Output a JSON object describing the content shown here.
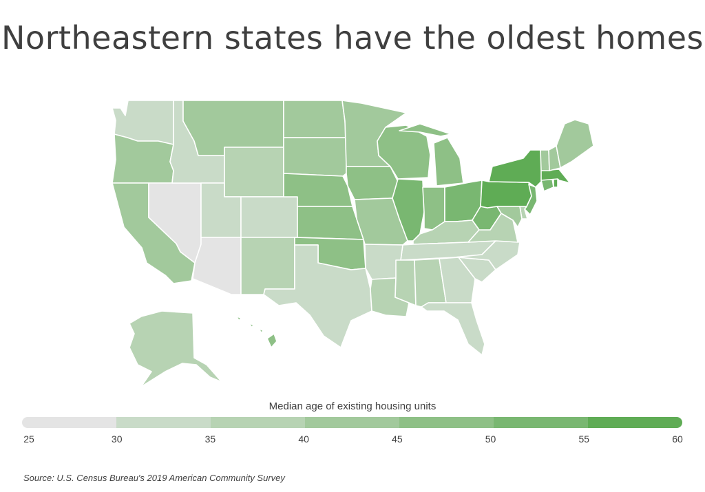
{
  "title": "Northeastern states have the oldest homes",
  "legend": {
    "title": "Median age of existing housing units",
    "ticks": [
      "25",
      "30",
      "35",
      "40",
      "45",
      "50",
      "55",
      "60"
    ],
    "bins": [
      {
        "range": [
          25,
          30
        ],
        "color": "#e4e4e4"
      },
      {
        "range": [
          30,
          35
        ],
        "color": "#c9dbc8"
      },
      {
        "range": [
          35,
          40
        ],
        "color": "#b7d3b3"
      },
      {
        "range": [
          40,
          45
        ],
        "color": "#a2c99c"
      },
      {
        "range": [
          45,
          50
        ],
        "color": "#8ec086"
      },
      {
        "range": [
          50,
          55
        ],
        "color": "#79b771"
      },
      {
        "range": [
          55,
          60
        ],
        "color": "#5fac55"
      }
    ]
  },
  "source": "Source:  U.S. Census Bureau's 2019 American Community Survey",
  "states": [
    {
      "id": "WA",
      "bin": 1
    },
    {
      "id": "OR",
      "bin": 3
    },
    {
      "id": "CA",
      "bin": 3
    },
    {
      "id": "NV",
      "bin": 0
    },
    {
      "id": "ID",
      "bin": 1
    },
    {
      "id": "MT",
      "bin": 3
    },
    {
      "id": "WY",
      "bin": 2
    },
    {
      "id": "UT",
      "bin": 1
    },
    {
      "id": "AZ",
      "bin": 0
    },
    {
      "id": "CO",
      "bin": 1
    },
    {
      "id": "NM",
      "bin": 2
    },
    {
      "id": "ND",
      "bin": 3
    },
    {
      "id": "SD",
      "bin": 3
    },
    {
      "id": "NE",
      "bin": 4
    },
    {
      "id": "KS",
      "bin": 4
    },
    {
      "id": "OK",
      "bin": 4
    },
    {
      "id": "TX",
      "bin": 1
    },
    {
      "id": "MN",
      "bin": 3
    },
    {
      "id": "IA",
      "bin": 4
    },
    {
      "id": "MO",
      "bin": 3
    },
    {
      "id": "AR",
      "bin": 1
    },
    {
      "id": "LA",
      "bin": 2
    },
    {
      "id": "WI",
      "bin": 4
    },
    {
      "id": "IL",
      "bin": 5
    },
    {
      "id": "MI",
      "bin": 4
    },
    {
      "id": "IN",
      "bin": 4
    },
    {
      "id": "OH",
      "bin": 5
    },
    {
      "id": "KY",
      "bin": 2
    },
    {
      "id": "TN",
      "bin": 1
    },
    {
      "id": "MS",
      "bin": 2
    },
    {
      "id": "AL",
      "bin": 2
    },
    {
      "id": "GA",
      "bin": 1
    },
    {
      "id": "FL",
      "bin": 1
    },
    {
      "id": "SC",
      "bin": 1
    },
    {
      "id": "NC",
      "bin": 1
    },
    {
      "id": "VA",
      "bin": 2
    },
    {
      "id": "WV",
      "bin": 5
    },
    {
      "id": "PA",
      "bin": 6
    },
    {
      "id": "NY",
      "bin": 6
    },
    {
      "id": "NJ",
      "bin": 5
    },
    {
      "id": "DE",
      "bin": 2
    },
    {
      "id": "MD",
      "bin": 3
    },
    {
      "id": "CT",
      "bin": 5
    },
    {
      "id": "RI",
      "bin": 6
    },
    {
      "id": "MA",
      "bin": 6
    },
    {
      "id": "VT",
      "bin": 3
    },
    {
      "id": "NH",
      "bin": 3
    },
    {
      "id": "ME",
      "bin": 3
    },
    {
      "id": "AK",
      "bin": 2
    },
    {
      "id": "HI",
      "bin": 4
    }
  ]
}
